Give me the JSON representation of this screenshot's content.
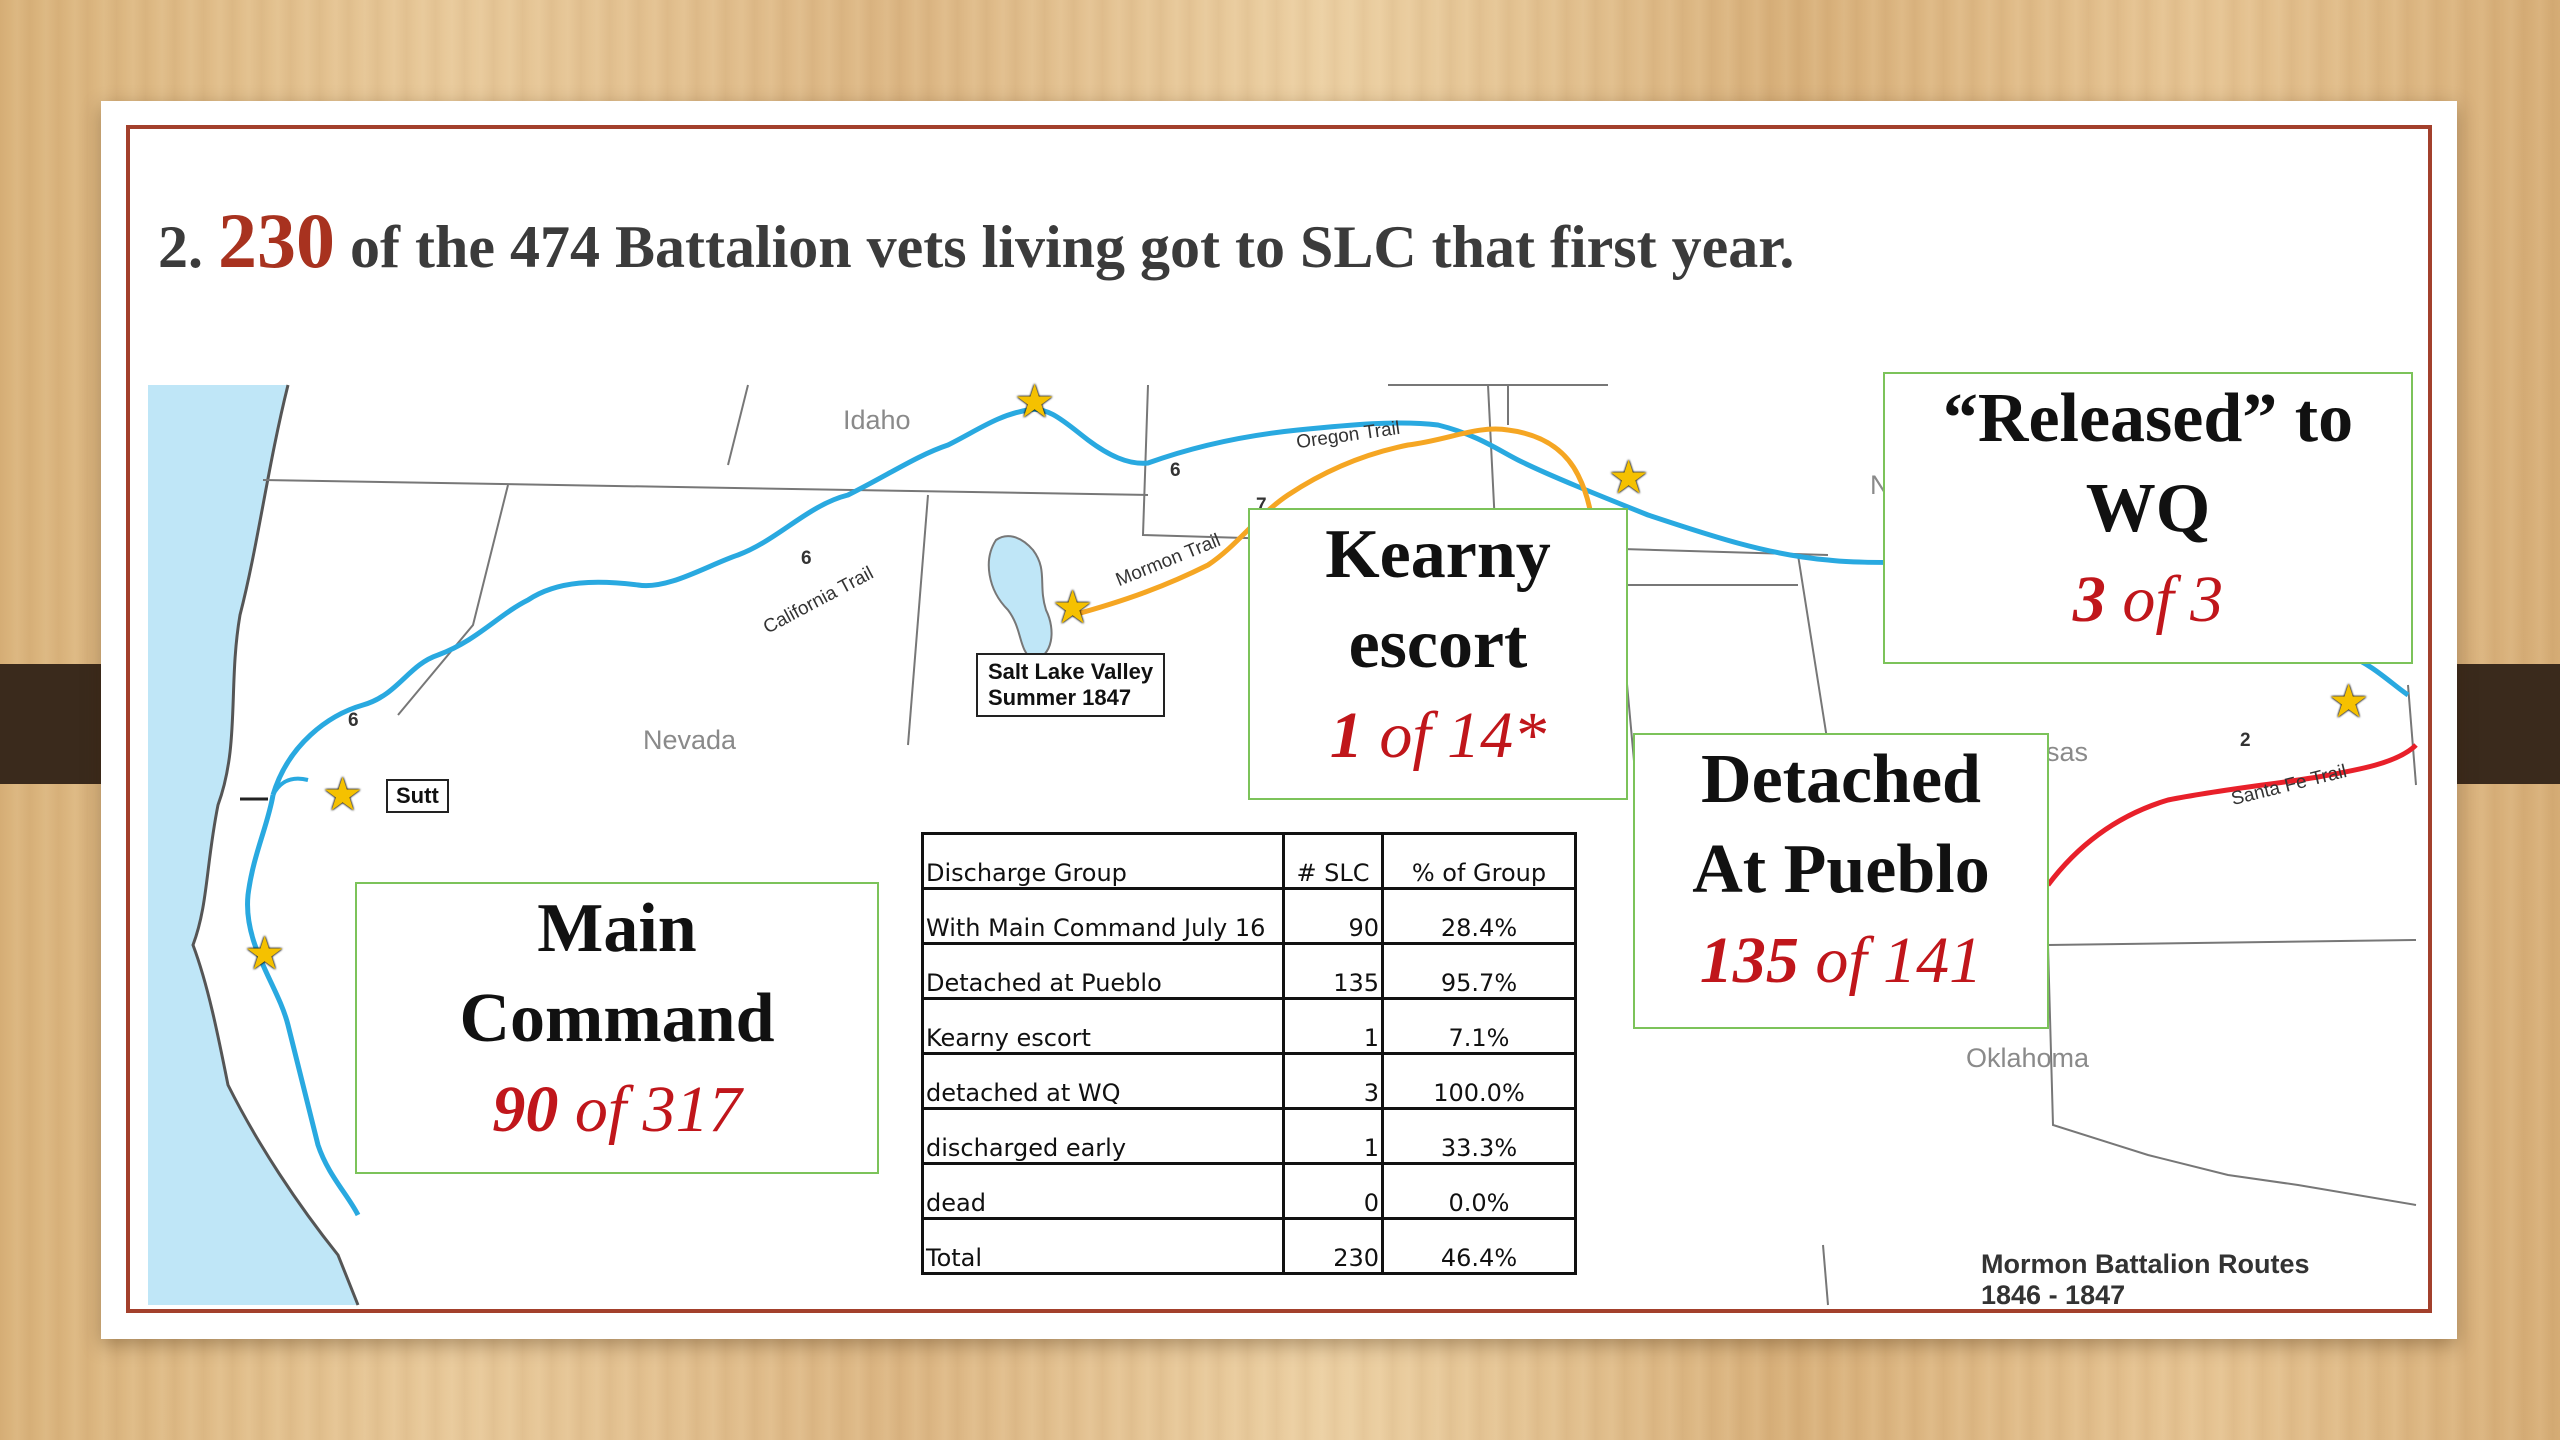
{
  "title": {
    "prefix": "2.",
    "highlight": "230",
    "rest": "of  the 474 Battalion vets living got to SLC that first year."
  },
  "map": {
    "region_labels": {
      "idaho": "Idaho",
      "nevada": "Nevada",
      "oklahoma": "Oklahoma",
      "kansas_partial": "sas",
      "n_partial": "N"
    },
    "trail_labels": {
      "oregon": "Oregon Trail",
      "california": "California Trail",
      "mormon": "Mormon Trail",
      "santa_fe": "Santa Fe Trail"
    },
    "route_numbers": {
      "n1": "6",
      "n2": "6",
      "n3": "6",
      "n4": "2",
      "n5": "7"
    },
    "salt_lake": {
      "line1": "Salt Lake Valley",
      "line2": "Summer 1847"
    },
    "sutter_label": "Sutt",
    "legend": {
      "line1": "Mormon Battalion Routes",
      "line2": "1846 - 1847"
    },
    "colors": {
      "california_trail": "#29a9e0",
      "mormon_trail": "#f5a623",
      "santa_fe_trail": "#e8202a",
      "water": "#bfe6f7",
      "star": "#f5c100"
    }
  },
  "boxes": {
    "released": {
      "line1": "“Released” to",
      "line2": "WQ",
      "n": "3",
      "of": "of",
      "total": "3"
    },
    "kearny": {
      "line1": "Kearny",
      "line2": "escort",
      "n": "1",
      "of": "of",
      "total": "14*"
    },
    "detached": {
      "line1": "Detached",
      "line2": "At Pueblo",
      "n": "135",
      "of": "of",
      "total": "141"
    },
    "main": {
      "line1": "Main",
      "line2": "Command",
      "n": "90",
      "of": "of",
      "total": "317"
    }
  },
  "table": {
    "headers": [
      "Discharge Group",
      "# SLC",
      "% of Group"
    ],
    "rows": [
      [
        "With Main Command July 16",
        "90",
        "28.4%"
      ],
      [
        "Detached at Pueblo",
        "135",
        "95.7%"
      ],
      [
        "Kearny escort",
        "1",
        "7.1%"
      ],
      [
        "detached at WQ",
        "3",
        "100.0%"
      ],
      [
        "discharged early",
        "1",
        "33.3%"
      ],
      [
        "dead",
        "0",
        "0.0%"
      ],
      [
        "Total",
        "230",
        "46.4%"
      ]
    ]
  }
}
